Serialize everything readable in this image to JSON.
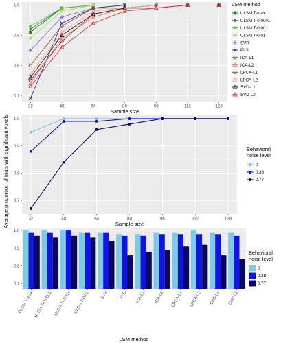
{
  "ylabel_shared": "Average proportion of trials with significant voxels",
  "colors": {
    "panel_bg": "#ebebeb",
    "grid_major": "#ffffff",
    "noise_0": "#7ec8e8",
    "noise_038": "#1414e0",
    "noise_077": "#0a0a5c"
  },
  "chart_data": [
    {
      "type": "line",
      "xlabel": "Sample size",
      "ylabel": "",
      "x": [
        32,
        48,
        64,
        80,
        96,
        112,
        128
      ],
      "x_ticks": [
        "32",
        "48",
        "64",
        "80",
        "96",
        "112",
        "128"
      ],
      "ylim": [
        0.68,
        1.01
      ],
      "y_ticks": [
        "0.7",
        "0.8",
        "0.9",
        "1.0"
      ],
      "y_tick_values": [
        0.7,
        0.8,
        0.9,
        1.0
      ],
      "legend_title": "LSM method",
      "legend_position": "right",
      "series": [
        {
          "name": "ULSM T-max",
          "color": "#1a7a1a",
          "marker": "star",
          "values": [
            0.91,
            0.99,
            1.0,
            1.0,
            1.0,
            1.0,
            1.0
          ]
        },
        {
          "name": "ULSM T-0.0001",
          "color": "#2e8b2e",
          "marker": "diamond",
          "values": [
            0.92,
            0.99,
            1.0,
            1.0,
            1.0,
            1.0,
            1.0
          ]
        },
        {
          "name": "ULSM T-0.001",
          "color": "#6fbf3f",
          "marker": "circle",
          "values": [
            0.93,
            0.99,
            1.0,
            1.0,
            1.0,
            1.0,
            1.0
          ]
        },
        {
          "name": "ULSM T-0.01",
          "color": "#a8e070",
          "marker": "square",
          "values": [
            0.89,
            0.98,
            1.0,
            1.0,
            1.0,
            1.0,
            1.0
          ]
        },
        {
          "name": "SVR",
          "color": "#7b68ee",
          "marker": "plus",
          "values": [
            0.85,
            0.96,
            0.99,
            1.0,
            1.0,
            1.0,
            1.0
          ]
        },
        {
          "name": "PLS",
          "color": "#2b2b8c",
          "marker": "cross",
          "values": [
            0.69,
            0.94,
            0.99,
            1.0,
            1.0,
            1.0,
            1.0
          ]
        },
        {
          "name": "ICA-L1",
          "color": "#8b3a3a",
          "marker": "circle-open",
          "values": [
            0.75,
            0.88,
            0.97,
            0.99,
            1.0,
            1.0,
            1.0
          ]
        },
        {
          "name": "ICA-L2",
          "color": "#e07a5f",
          "marker": "triangle-open",
          "values": [
            0.74,
            0.89,
            0.96,
            0.99,
            1.0,
            1.0,
            1.0
          ]
        },
        {
          "name": "LPCA-L1",
          "color": "#a0522d",
          "marker": "circle-open",
          "values": [
            0.8,
            0.93,
            0.99,
            0.99,
            1.0,
            1.0,
            1.0
          ]
        },
        {
          "name": "LPCA-L2",
          "color": "#f4a6a6",
          "marker": "triangle-open",
          "values": [
            0.77,
            0.91,
            0.98,
            0.99,
            1.0,
            1.0,
            1.0
          ]
        },
        {
          "name": "SVD-L1",
          "color": "#3a1a1a",
          "marker": "triangle-open",
          "values": [
            0.76,
            0.9,
            0.97,
            0.99,
            0.99,
            1.0,
            1.0
          ]
        },
        {
          "name": "SVD-L2",
          "color": "#e8383d",
          "marker": "triangle-open",
          "values": [
            0.73,
            0.86,
            0.94,
            0.98,
            0.99,
            1.0,
            1.0
          ]
        }
      ]
    },
    {
      "type": "line",
      "xlabel": "Sample size",
      "ylabel": "",
      "x": [
        32,
        48,
        64,
        80,
        96,
        112,
        128
      ],
      "x_ticks": [
        "32",
        "48",
        "64",
        "80",
        "96",
        "112",
        "128"
      ],
      "ylim": [
        0.65,
        1.015
      ],
      "y_ticks": [
        "0.7",
        "0.8",
        "0.9",
        "1.0"
      ],
      "y_tick_values": [
        0.7,
        0.8,
        0.9,
        1.0
      ],
      "legend_title": "Behavioral noise level",
      "legend_position": "right",
      "series": [
        {
          "name": "0",
          "color": "#7ec8e8",
          "values": [
            0.95,
            1.0,
            1.0,
            1.0,
            1.0,
            1.0,
            1.0
          ]
        },
        {
          "name": "0.38",
          "color": "#1414e0",
          "values": [
            0.88,
            0.99,
            0.99,
            1.0,
            1.0,
            1.0,
            1.0
          ]
        },
        {
          "name": "0.77",
          "color": "#0a0a5c",
          "values": [
            0.67,
            0.84,
            0.96,
            0.98,
            1.0,
            1.0,
            1.0
          ]
        }
      ]
    },
    {
      "type": "bar",
      "xlabel": "LSM method",
      "ylabel": "",
      "categories": [
        "ULSM T-max",
        "ULSM T-0.0001",
        "ULSM T-0.001",
        "ULSM T-0.01",
        "SVR",
        "PLS",
        "ICA-L1",
        "ICA-L2",
        "LPCA-L1",
        "LPCA-L2",
        "SVD-L1",
        "SVD-L2"
      ],
      "ylim": [
        0.7,
        1.0
      ],
      "y_ticks": [
        "0.7",
        "0.8",
        "0.9",
        "1.0"
      ],
      "y_tick_values": [
        0.7,
        0.8,
        0.9,
        1.0
      ],
      "legend_title": "Behavioral noise level",
      "legend_position": "right",
      "series": [
        {
          "name": "0",
          "color": "#7ec8e8",
          "values": [
            1.0,
            1.0,
            1.0,
            0.99,
            0.99,
            0.98,
            0.98,
            0.99,
            0.99,
            1.0,
            0.99,
            0.99
          ]
        },
        {
          "name": "0.38",
          "color": "#1414e0",
          "values": [
            0.99,
            0.99,
            1.0,
            0.99,
            0.99,
            0.97,
            0.97,
            0.98,
            0.98,
            0.98,
            0.98,
            0.97
          ]
        },
        {
          "name": "0.77",
          "color": "#0a0a5c",
          "values": [
            0.97,
            0.96,
            0.97,
            0.96,
            0.94,
            0.86,
            0.88,
            0.89,
            0.91,
            0.92,
            0.86,
            0.84
          ]
        }
      ]
    }
  ]
}
